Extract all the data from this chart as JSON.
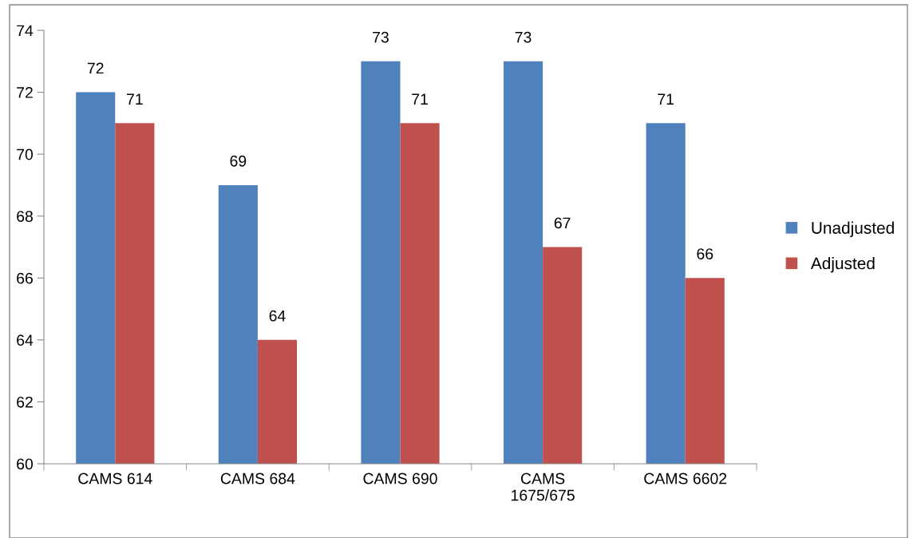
{
  "chart_data": {
    "type": "bar",
    "categories": [
      "CAMS 614",
      "CAMS 684",
      "CAMS 690",
      "CAMS 1675/675",
      "CAMS 6602"
    ],
    "series": [
      {
        "name": "Unadjusted",
        "color": "#4f81bd",
        "values": [
          72,
          69,
          73,
          73,
          71
        ]
      },
      {
        "name": "Adjusted",
        "color": "#c0504d",
        "values": [
          71,
          64,
          71,
          67,
          66
        ]
      }
    ],
    "ylim": [
      60,
      74
    ],
    "yticks": [
      60,
      62,
      64,
      66,
      68,
      70,
      72,
      74
    ],
    "data_labels": true,
    "grid": false,
    "legend": "right"
  }
}
